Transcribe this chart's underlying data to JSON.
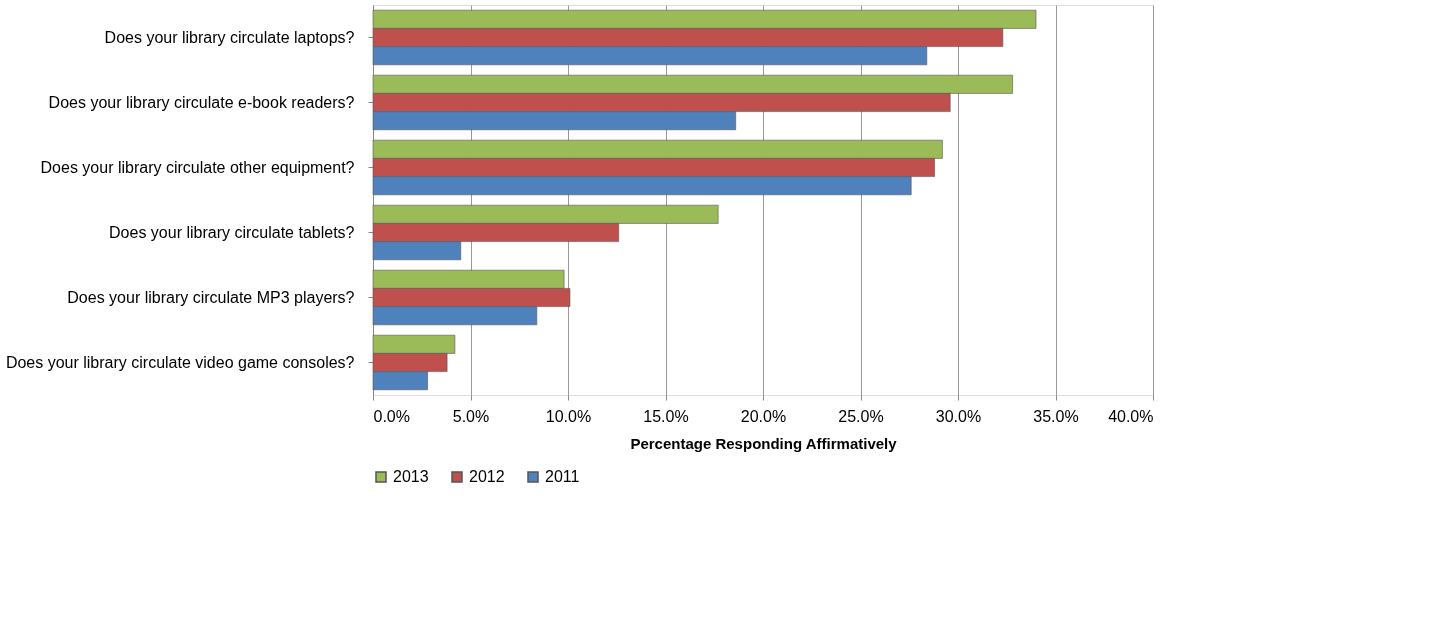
{
  "chart_data": {
    "type": "bar",
    "orientation": "horizontal",
    "categories": [
      "Does your library circulate laptops?",
      "Does your library circulate e-book readers?",
      "Does your library circulate other equipment?",
      "Does your library circulate tablets?",
      "Does your library circulate MP3 players?",
      "Does your library circulate video game consoles?"
    ],
    "series": [
      {
        "name": "2013",
        "color": "#9bbb59",
        "values": [
          34.0,
          32.8,
          29.2,
          17.7,
          9.8,
          4.2
        ]
      },
      {
        "name": "2012",
        "color": "#c0504d",
        "values": [
          32.3,
          29.6,
          28.8,
          12.6,
          10.1,
          3.8
        ]
      },
      {
        "name": "2011",
        "color": "#4f81bd",
        "values": [
          28.4,
          18.6,
          27.6,
          4.5,
          8.4,
          2.8
        ]
      }
    ],
    "xlabel": "Percentage Responding Affirmatively",
    "xlim": [
      0,
      40
    ],
    "xticks": [
      {
        "value": 0,
        "label": "0.0%"
      },
      {
        "value": 5,
        "label": "5.0%"
      },
      {
        "value": 10,
        "label": "10.0%"
      },
      {
        "value": 15,
        "label": "15.0%"
      },
      {
        "value": 20,
        "label": "20.0%"
      },
      {
        "value": 25,
        "label": "25.0%"
      },
      {
        "value": 30,
        "label": "30.0%"
      },
      {
        "value": 35,
        "label": "35.0%"
      },
      {
        "value": 40,
        "label": "40.0%"
      }
    ],
    "grid": "x",
    "legend": "bottom"
  }
}
